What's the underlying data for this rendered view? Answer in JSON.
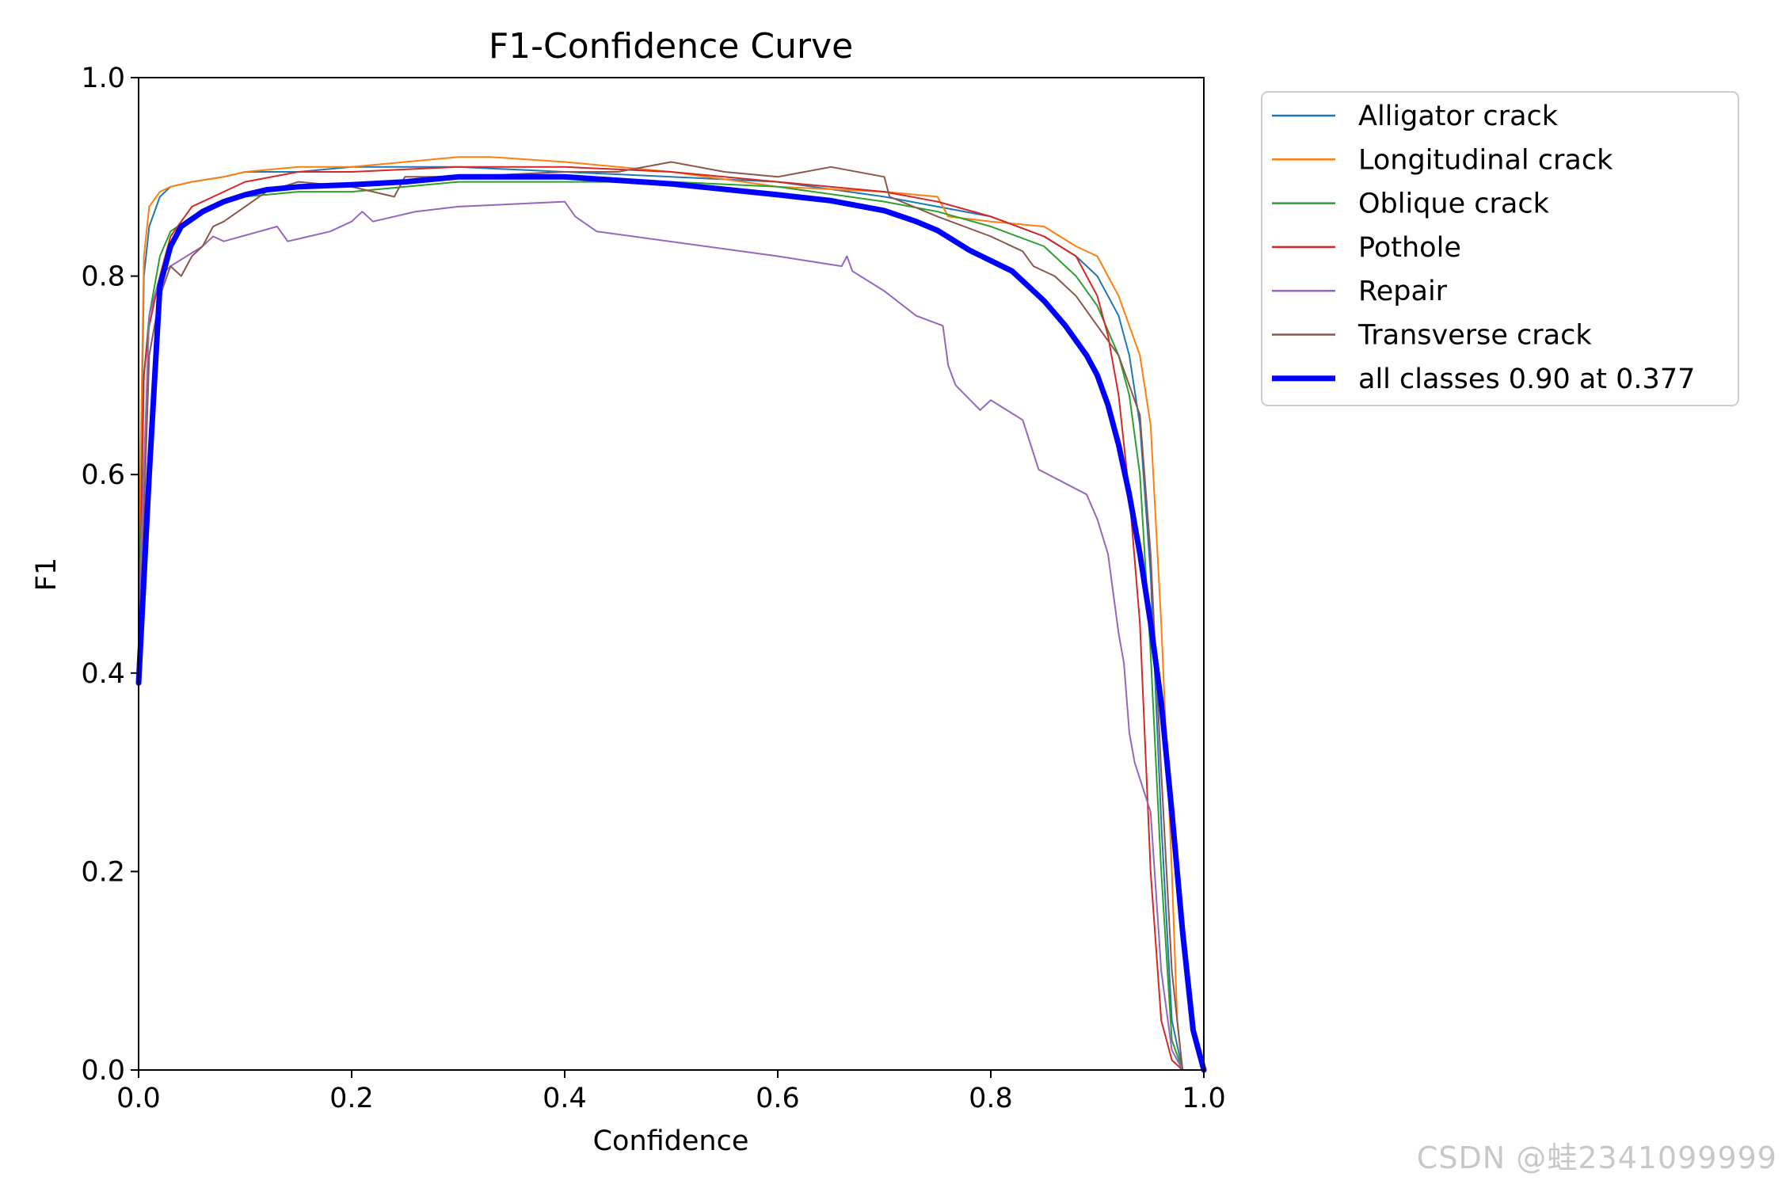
{
  "watermark": "CSDN @蛙2341099999",
  "chart_data": {
    "type": "line",
    "title": "F1-Confidence Curve",
    "xlabel": "Confidence",
    "ylabel": "F1",
    "xlim": [
      0,
      1
    ],
    "ylim": [
      0,
      1
    ],
    "xticks": [
      "0.0",
      "0.2",
      "0.4",
      "0.6",
      "0.8",
      "1.0"
    ],
    "yticks": [
      "0.0",
      "0.2",
      "0.4",
      "0.6",
      "0.8",
      "1.0"
    ],
    "grid": false,
    "legend_position": "outside-right",
    "series": [
      {
        "name": "Alligator crack",
        "color": "#1f77b4",
        "width": 2,
        "x": [
          0,
          0.005,
          0.01,
          0.02,
          0.03,
          0.05,
          0.08,
          0.1,
          0.15,
          0.2,
          0.3,
          0.4,
          0.5,
          0.6,
          0.7,
          0.75,
          0.8,
          0.85,
          0.88,
          0.9,
          0.92,
          0.93,
          0.94,
          0.95,
          0.96,
          0.97,
          0.98,
          0.99
        ],
        "y": [
          0.45,
          0.8,
          0.85,
          0.88,
          0.89,
          0.895,
          0.9,
          0.905,
          0.905,
          0.91,
          0.91,
          0.905,
          0.9,
          0.895,
          0.88,
          0.87,
          0.86,
          0.84,
          0.82,
          0.8,
          0.76,
          0.72,
          0.65,
          0.5,
          0.25,
          0.05,
          0.0,
          0.0
        ]
      },
      {
        "name": "Longitudinal crack",
        "color": "#ff7f0e",
        "width": 2,
        "x": [
          0,
          0.005,
          0.01,
          0.02,
          0.03,
          0.05,
          0.08,
          0.1,
          0.15,
          0.2,
          0.25,
          0.3,
          0.33,
          0.4,
          0.5,
          0.6,
          0.7,
          0.75,
          0.76,
          0.8,
          0.85,
          0.88,
          0.9,
          0.92,
          0.93,
          0.94,
          0.95,
          0.96,
          0.97,
          0.975,
          0.98,
          0.99
        ],
        "y": [
          0.5,
          0.82,
          0.87,
          0.885,
          0.89,
          0.895,
          0.9,
          0.905,
          0.91,
          0.91,
          0.915,
          0.92,
          0.92,
          0.915,
          0.905,
          0.89,
          0.885,
          0.88,
          0.86,
          0.855,
          0.85,
          0.83,
          0.82,
          0.78,
          0.75,
          0.72,
          0.65,
          0.45,
          0.2,
          0.05,
          0.0,
          0.0
        ]
      },
      {
        "name": "Oblique crack",
        "color": "#2ca02c",
        "width": 2,
        "x": [
          0,
          0.005,
          0.01,
          0.02,
          0.03,
          0.05,
          0.08,
          0.1,
          0.15,
          0.2,
          0.3,
          0.4,
          0.5,
          0.6,
          0.7,
          0.75,
          0.8,
          0.85,
          0.88,
          0.9,
          0.92,
          0.93,
          0.94,
          0.95,
          0.96,
          0.97,
          0.98
        ],
        "y": [
          0.45,
          0.7,
          0.76,
          0.82,
          0.845,
          0.86,
          0.875,
          0.88,
          0.885,
          0.885,
          0.895,
          0.895,
          0.895,
          0.89,
          0.875,
          0.865,
          0.85,
          0.83,
          0.8,
          0.77,
          0.72,
          0.68,
          0.6,
          0.42,
          0.2,
          0.03,
          0.0
        ]
      },
      {
        "name": "Pothole",
        "color": "#d62728",
        "width": 2,
        "x": [
          0,
          0.005,
          0.01,
          0.02,
          0.03,
          0.05,
          0.08,
          0.1,
          0.15,
          0.2,
          0.3,
          0.4,
          0.5,
          0.6,
          0.7,
          0.75,
          0.8,
          0.85,
          0.88,
          0.9,
          0.91,
          0.92,
          0.93,
          0.94,
          0.95,
          0.96,
          0.97,
          0.98
        ],
        "y": [
          0.4,
          0.7,
          0.75,
          0.8,
          0.84,
          0.87,
          0.885,
          0.895,
          0.905,
          0.905,
          0.91,
          0.91,
          0.905,
          0.895,
          0.885,
          0.875,
          0.86,
          0.84,
          0.82,
          0.78,
          0.74,
          0.68,
          0.58,
          0.45,
          0.2,
          0.05,
          0.01,
          0.0
        ]
      },
      {
        "name": "Repair",
        "color": "#9467bd",
        "width": 2,
        "x": [
          0,
          0.01,
          0.02,
          0.03,
          0.06,
          0.07,
          0.08,
          0.13,
          0.14,
          0.18,
          0.2,
          0.21,
          0.22,
          0.26,
          0.3,
          0.4,
          0.41,
          0.43,
          0.6,
          0.66,
          0.665,
          0.67,
          0.7,
          0.73,
          0.755,
          0.76,
          0.767,
          0.79,
          0.8,
          0.83,
          0.845,
          0.89,
          0.9,
          0.91,
          0.915,
          0.92,
          0.925,
          0.93,
          0.935,
          0.95,
          0.96,
          0.97,
          0.98
        ],
        "y": [
          0.45,
          0.76,
          0.8,
          0.81,
          0.83,
          0.84,
          0.835,
          0.85,
          0.835,
          0.845,
          0.855,
          0.865,
          0.855,
          0.865,
          0.87,
          0.875,
          0.86,
          0.845,
          0.82,
          0.81,
          0.82,
          0.805,
          0.785,
          0.76,
          0.75,
          0.71,
          0.69,
          0.665,
          0.675,
          0.655,
          0.605,
          0.58,
          0.555,
          0.52,
          0.48,
          0.44,
          0.41,
          0.34,
          0.31,
          0.26,
          0.1,
          0.02,
          0.0
        ]
      },
      {
        "name": "Transverse crack",
        "color": "#8c564b",
        "width": 2,
        "x": [
          0,
          0.01,
          0.02,
          0.03,
          0.04,
          0.05,
          0.06,
          0.07,
          0.08,
          0.1,
          0.12,
          0.15,
          0.2,
          0.24,
          0.25,
          0.3,
          0.4,
          0.45,
          0.5,
          0.55,
          0.6,
          0.65,
          0.7,
          0.705,
          0.75,
          0.8,
          0.83,
          0.84,
          0.86,
          0.88,
          0.9,
          0.92,
          0.94,
          0.95,
          0.96,
          0.97,
          0.98
        ],
        "y": [
          0.4,
          0.72,
          0.78,
          0.81,
          0.8,
          0.82,
          0.83,
          0.85,
          0.855,
          0.87,
          0.885,
          0.895,
          0.89,
          0.88,
          0.9,
          0.9,
          0.905,
          0.905,
          0.915,
          0.905,
          0.9,
          0.91,
          0.9,
          0.88,
          0.86,
          0.84,
          0.825,
          0.81,
          0.8,
          0.78,
          0.75,
          0.72,
          0.66,
          0.52,
          0.3,
          0.1,
          0.0
        ]
      },
      {
        "name": "all classes 0.90 at 0.377",
        "color": "#0000ff",
        "width": 7,
        "x": [
          0,
          0.01,
          0.02,
          0.03,
          0.04,
          0.06,
          0.08,
          0.1,
          0.12,
          0.15,
          0.2,
          0.25,
          0.3,
          0.35,
          0.377,
          0.4,
          0.5,
          0.6,
          0.65,
          0.7,
          0.73,
          0.75,
          0.78,
          0.82,
          0.85,
          0.87,
          0.89,
          0.9,
          0.91,
          0.92,
          0.93,
          0.94,
          0.95,
          0.96,
          0.97,
          0.98,
          0.99,
          1.0
        ],
        "y": [
          0.39,
          0.6,
          0.79,
          0.83,
          0.85,
          0.865,
          0.875,
          0.882,
          0.887,
          0.89,
          0.892,
          0.895,
          0.9,
          0.9,
          0.9,
          0.9,
          0.893,
          0.882,
          0.876,
          0.866,
          0.855,
          0.846,
          0.826,
          0.805,
          0.775,
          0.75,
          0.72,
          0.7,
          0.67,
          0.63,
          0.58,
          0.52,
          0.45,
          0.37,
          0.26,
          0.14,
          0.04,
          0.0
        ]
      }
    ]
  }
}
